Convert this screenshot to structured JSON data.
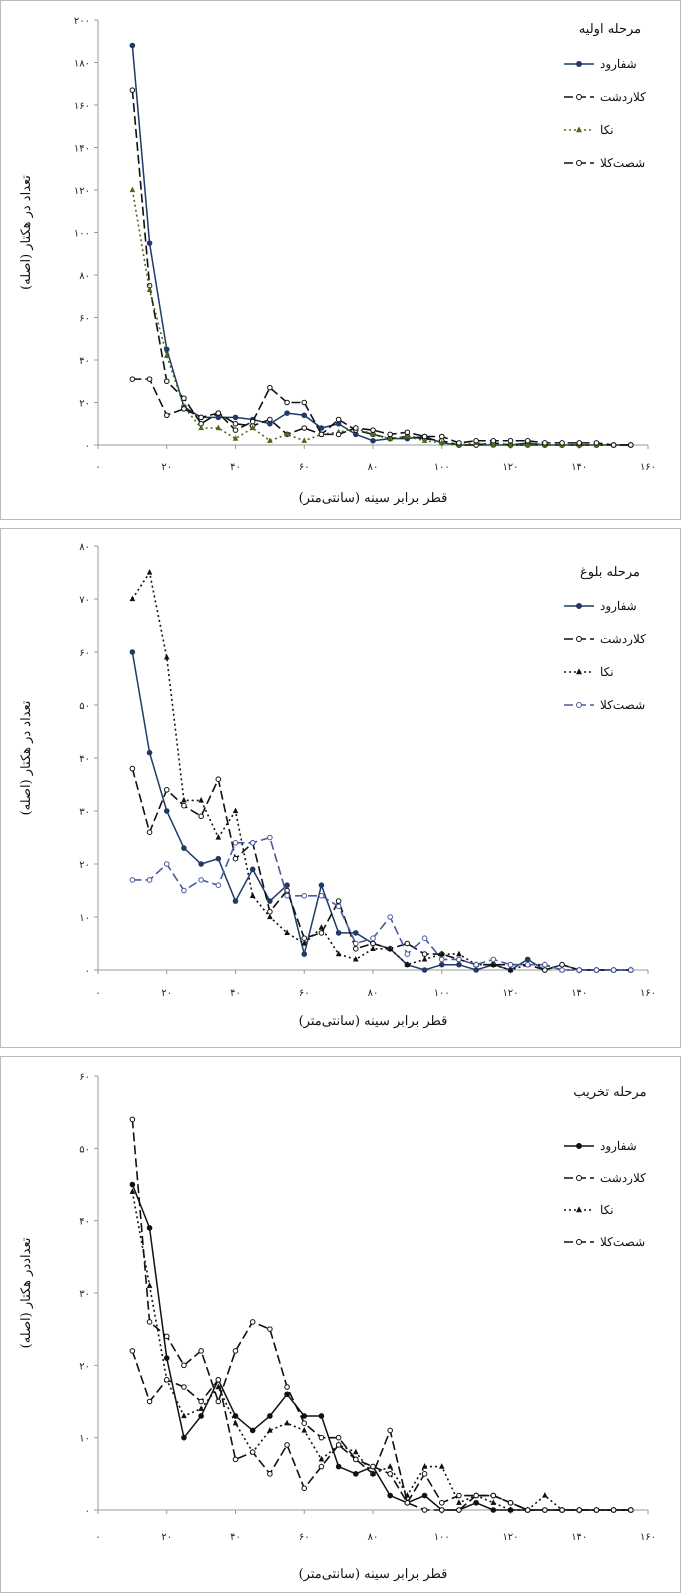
{
  "chart_data": [
    {
      "type": "line",
      "title": "مرحله اولیه",
      "xlabel": "قطر برابر سینه (سانتی‌متر)",
      "ylabel": "تعداد در هکتار (اصله)",
      "xlim": [
        0,
        160
      ],
      "ylim": [
        0,
        200
      ],
      "x_ticks": [
        0,
        20,
        40,
        60,
        80,
        100,
        120,
        140,
        160
      ],
      "x_tick_labels": [
        "۰",
        "۲۰",
        "۴۰",
        "۶۰",
        "۸۰",
        "۱۰۰",
        "۱۲۰",
        "۱۴۰",
        "۱۶۰"
      ],
      "y_ticks": [
        0,
        20,
        40,
        60,
        80,
        100,
        120,
        140,
        160,
        180,
        200
      ],
      "y_tick_labels": [
        "۰",
        "۲۰",
        "۴۰",
        "۶۰",
        "۸۰",
        "۱۰۰",
        "۱۲۰",
        "۱۴۰",
        "۱۶۰",
        "۱۸۰",
        "۲۰۰"
      ],
      "x": [
        10,
        15,
        20,
        25,
        30,
        35,
        40,
        45,
        50,
        55,
        60,
        65,
        70,
        75,
        80,
        85,
        90,
        95,
        100,
        105,
        110,
        115,
        120,
        125,
        130,
        135,
        140,
        145,
        150,
        155
      ],
      "series": [
        {
          "name": "شفارود",
          "style": "solid",
          "marker": "filled-circle",
          "color": "#1f3a68",
          "values": [
            188,
            95,
            45,
            18,
            13,
            13,
            13,
            12,
            10,
            15,
            14,
            8,
            10,
            5,
            2,
            3,
            3,
            4,
            1,
            0,
            0,
            0,
            0,
            1,
            0,
            0,
            0,
            0,
            0,
            0
          ]
        },
        {
          "name": "کلاردشت",
          "style": "dashed",
          "marker": "open-circle",
          "color": "#111111",
          "values": [
            167,
            75,
            30,
            22,
            10,
            15,
            10,
            9,
            12,
            5,
            8,
            5,
            12,
            7,
            5,
            3,
            4,
            3,
            2,
            0,
            0,
            1,
            0,
            0,
            0,
            0,
            0,
            0,
            0,
            0
          ]
        },
        {
          "name": "نکا",
          "style": "dotted",
          "marker": "filled-triangle",
          "color": "#4a6a1a",
          "values": [
            120,
            73,
            42,
            18,
            8,
            8,
            3,
            8,
            2,
            5,
            2,
            5,
            6,
            8,
            5,
            3,
            4,
            2,
            1,
            0,
            1,
            0,
            0,
            0,
            0,
            0,
            0,
            0,
            0,
            0
          ]
        },
        {
          "name": "شصت‌کلا",
          "style": "dashed",
          "marker": "open-circle",
          "color": "#111111",
          "values": [
            31,
            31,
            14,
            17,
            13,
            15,
            7,
            11,
            27,
            20,
            20,
            5,
            5,
            8,
            7,
            5,
            6,
            4,
            4,
            1,
            2,
            2,
            2,
            2,
            1,
            1,
            1,
            1,
            0,
            0
          ]
        }
      ]
    },
    {
      "type": "line",
      "title": "مرحله بلوغ",
      "xlabel": "قطر برابر سینه (سانتی‌متر)",
      "ylabel": "تعداد در هکتار (اصله)",
      "xlim": [
        0,
        160
      ],
      "ylim": [
        0,
        80
      ],
      "x_ticks": [
        0,
        20,
        40,
        60,
        80,
        100,
        120,
        140,
        160
      ],
      "x_tick_labels": [
        "۰",
        "۲۰",
        "۴۰",
        "۶۰",
        "۸۰",
        "۱۰۰",
        "۱۲۰",
        "۱۴۰",
        "۱۶۰"
      ],
      "y_ticks": [
        0,
        10,
        20,
        30,
        40,
        50,
        60,
        70,
        80
      ],
      "y_tick_labels": [
        "۰",
        "۱۰",
        "۲۰",
        "۳۰",
        "۴۰",
        "۵۰",
        "۶۰",
        "۷۰",
        "۸۰"
      ],
      "x": [
        10,
        15,
        20,
        25,
        30,
        35,
        40,
        45,
        50,
        55,
        60,
        65,
        70,
        75,
        80,
        85,
        90,
        95,
        100,
        105,
        110,
        115,
        120,
        125,
        130,
        135,
        140,
        145,
        150,
        155
      ],
      "series": [
        {
          "name": "شفارود",
          "style": "solid",
          "marker": "filled-circle",
          "color": "#1f3a68",
          "values": [
            60,
            41,
            30,
            23,
            20,
            21,
            13,
            19,
            13,
            16,
            3,
            16,
            7,
            7,
            5,
            4,
            1,
            0,
            1,
            1,
            0,
            1,
            0,
            2,
            0,
            1,
            0,
            0,
            0,
            0
          ]
        },
        {
          "name": "کلاردشت",
          "style": "dashed",
          "marker": "open-circle",
          "color": "#111111",
          "values": [
            38,
            26,
            34,
            31,
            29,
            36,
            21,
            24,
            11,
            15,
            6,
            7,
            13,
            4,
            5,
            4,
            5,
            3,
            3,
            2,
            1,
            1,
            1,
            1,
            0,
            1,
            0,
            0,
            0,
            0
          ]
        },
        {
          "name": "نکا",
          "style": "dotted",
          "marker": "filled-triangle",
          "color": "#111111",
          "values": [
            70,
            75,
            59,
            32,
            32,
            25,
            30,
            14,
            10,
            7,
            5,
            8,
            3,
            2,
            4,
            4,
            1,
            2,
            3,
            3,
            1,
            1,
            0,
            1,
            1,
            0,
            0,
            0,
            0,
            0
          ]
        },
        {
          "name": "شصت‌کلا",
          "style": "dashed",
          "marker": "open-circle",
          "color": "#4a5aa0",
          "values": [
            17,
            17,
            20,
            15,
            17,
            16,
            24,
            24,
            25,
            14,
            14,
            14,
            12,
            5,
            6,
            10,
            3,
            6,
            2,
            2,
            1,
            2,
            1,
            1,
            1,
            0,
            0,
            0,
            0,
            0
          ]
        }
      ]
    },
    {
      "type": "line",
      "title": "مرحله تخریب",
      "xlabel": "قطر برابر سینه (سانتی‌متر)",
      "ylabel": "تعداددر هکتار (اصله)",
      "xlim": [
        0,
        160
      ],
      "ylim": [
        0,
        60
      ],
      "x_ticks": [
        0,
        20,
        40,
        60,
        80,
        100,
        120,
        140,
        160
      ],
      "x_tick_labels": [
        "۰",
        "۲۰",
        "۴۰",
        "۶۰",
        "۸۰",
        "۱۰۰",
        "۱۲۰",
        "۱۴۰",
        "۱۶۰"
      ],
      "y_ticks": [
        0,
        10,
        20,
        30,
        40,
        50,
        60
      ],
      "y_tick_labels": [
        "۰",
        "۱۰",
        "۲۰",
        "۳۰",
        "۴۰",
        "۵۰",
        "۶۰"
      ],
      "x": [
        10,
        15,
        20,
        25,
        30,
        35,
        40,
        45,
        50,
        55,
        60,
        65,
        70,
        75,
        80,
        85,
        90,
        95,
        100,
        105,
        110,
        115,
        120,
        125,
        130,
        135,
        140,
        145,
        150,
        155
      ],
      "series": [
        {
          "name": "شفارود",
          "style": "solid",
          "marker": "filled-circle",
          "color": "#111111",
          "values": [
            45,
            39,
            21,
            10,
            13,
            18,
            13,
            11,
            13,
            16,
            13,
            13,
            6,
            5,
            6,
            2,
            1,
            2,
            0,
            0,
            1,
            0,
            0,
            0,
            0,
            0,
            0,
            0,
            0,
            0
          ]
        },
        {
          "name": "کلاردشت",
          "style": "dashed",
          "marker": "open-circle",
          "color": "#111111",
          "values": [
            54,
            26,
            24,
            20,
            22,
            15,
            22,
            26,
            25,
            17,
            12,
            10,
            10,
            7,
            5,
            11,
            1,
            0,
            0,
            0,
            2,
            2,
            1,
            0,
            0,
            0,
            0,
            0,
            0,
            0
          ]
        },
        {
          "name": "نکا",
          "style": "dotted",
          "marker": "filled-triangle",
          "color": "#111111",
          "values": [
            44,
            31,
            18,
            13,
            14,
            17,
            12,
            8,
            11,
            12,
            11,
            7,
            9,
            8,
            5,
            6,
            2,
            6,
            6,
            1,
            2,
            1,
            0,
            0,
            2,
            0,
            0,
            0,
            0,
            0
          ]
        },
        {
          "name": "شصت‌کلا",
          "style": "dashed",
          "marker": "open-circle",
          "color": "#111111",
          "values": [
            22,
            15,
            18,
            17,
            15,
            18,
            7,
            8,
            5,
            9,
            3,
            6,
            9,
            7,
            6,
            5,
            1,
            5,
            1,
            2,
            2,
            2,
            1,
            0,
            0,
            0,
            0,
            0,
            0,
            0
          ]
        }
      ]
    }
  ]
}
